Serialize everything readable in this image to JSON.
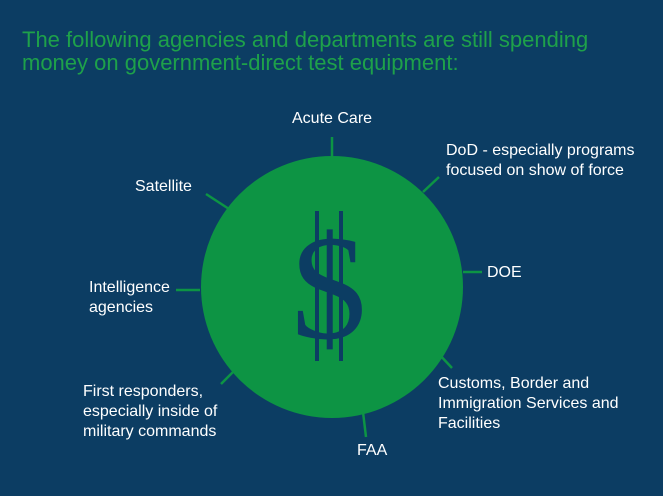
{
  "heading": "The following agencies and departments are still spending money on government-direct test equipment:",
  "center_symbol": "$",
  "colors": {
    "background": "#0c3d63",
    "accent_green": "#1ea14a",
    "circle_green": "#0d9444",
    "label_text": "#ffffff"
  },
  "labels": {
    "acute_care": "Acute Care",
    "dod": "DoD - especially programs\nfocused on show of force",
    "satellite": "Satellite",
    "doe": "DOE",
    "intelligence": "Intelligence\nagencies",
    "customs": "Customs, Border and\nImmigration Services and\nFacilities",
    "first_responders": "First responders,\nespecially inside of\nmilitary commands",
    "faa": "FAA"
  }
}
